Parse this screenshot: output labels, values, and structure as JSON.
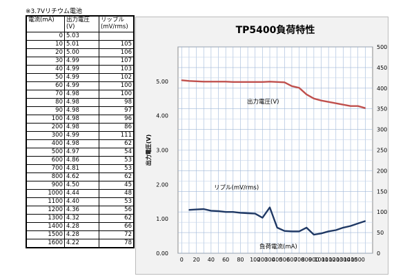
{
  "note": "※3.7Vリチウム電池",
  "table": {
    "headers": [
      "電流(mA)",
      "出力電圧 (V)",
      "リップル (mV/rms)"
    ],
    "rows": [
      [
        "0",
        "5.03",
        ""
      ],
      [
        "10",
        "5.01",
        "105"
      ],
      [
        "20",
        "5.00",
        "106"
      ],
      [
        "30",
        "4.99",
        "107"
      ],
      [
        "40",
        "4.99",
        "103"
      ],
      [
        "50",
        "4.99",
        "102"
      ],
      [
        "60",
        "4.99",
        "100"
      ],
      [
        "70",
        "4.98",
        "100"
      ],
      [
        "80",
        "4.98",
        "98"
      ],
      [
        "90",
        "4.98",
        "97"
      ],
      [
        "100",
        "4.98",
        "96"
      ],
      [
        "200",
        "4.98",
        "86"
      ],
      [
        "300",
        "4.99",
        "111"
      ],
      [
        "400",
        "4.98",
        "62"
      ],
      [
        "500",
        "4.97",
        "54"
      ],
      [
        "600",
        "4.86",
        "53"
      ],
      [
        "700",
        "4.81",
        "53"
      ],
      [
        "800",
        "4.62",
        "62"
      ],
      [
        "900",
        "4.50",
        "45"
      ],
      [
        "1000",
        "4.44",
        "48"
      ],
      [
        "1100",
        "4.40",
        "53"
      ],
      [
        "1200",
        "4.36",
        "56"
      ],
      [
        "1300",
        "4.32",
        "62"
      ],
      [
        "1400",
        "4.28",
        "66"
      ],
      [
        "1500",
        "4.28",
        "72"
      ],
      [
        "1600",
        "4.22",
        "78"
      ]
    ]
  },
  "chart_data": {
    "type": "line",
    "title": "TP5400負荷特性",
    "ylabel": "出力電圧(V)",
    "xlabel": "",
    "categories": [
      "0",
      "10",
      "20",
      "30",
      "40",
      "50",
      "60",
      "70",
      "80",
      "90",
      "100",
      "200",
      "300",
      "400",
      "500",
      "600",
      "700",
      "800",
      "900",
      "1000",
      "1100",
      "1200",
      "1300",
      "1400",
      "1500",
      "1600"
    ],
    "x_tick_labels": [
      "0",
      "20",
      "40",
      "60",
      "80",
      "100",
      "200",
      "300",
      "400",
      "500",
      "600",
      "700",
      "800",
      "900",
      "1000",
      "1100",
      "1200",
      "1300",
      "1400",
      "1500"
    ],
    "ylim_left": [
      0,
      6
    ],
    "y_left_ticks": [
      "0.00",
      "1.00",
      "2.00",
      "3.00",
      "4.00",
      "5.00"
    ],
    "ylim_right": [
      0,
      500
    ],
    "y_right_ticks": [
      "0",
      "50",
      "100",
      "150",
      "200",
      "250",
      "300",
      "350",
      "400",
      "450",
      "500"
    ],
    "grid": true,
    "series": [
      {
        "name": "出力電圧(V)",
        "axis": "left",
        "color": "#c0504d",
        "values": [
          5.03,
          5.01,
          5.0,
          4.99,
          4.99,
          4.99,
          4.99,
          4.98,
          4.98,
          4.98,
          4.98,
          4.98,
          4.99,
          4.98,
          4.97,
          4.86,
          4.81,
          4.62,
          4.5,
          4.44,
          4.4,
          4.36,
          4.32,
          4.28,
          4.28,
          4.22
        ]
      },
      {
        "name": "リプル(mV/rms)",
        "axis": "right",
        "color": "#1f3864",
        "values": [
          null,
          105,
          106,
          107,
          103,
          102,
          100,
          100,
          98,
          97,
          96,
          86,
          111,
          62,
          54,
          53,
          53,
          62,
          45,
          48,
          53,
          56,
          62,
          66,
          72,
          78
        ]
      }
    ],
    "annotations": [
      "出力電圧(V)",
      "リプル(mV/rms)",
      "負荷電流(mA)"
    ]
  }
}
